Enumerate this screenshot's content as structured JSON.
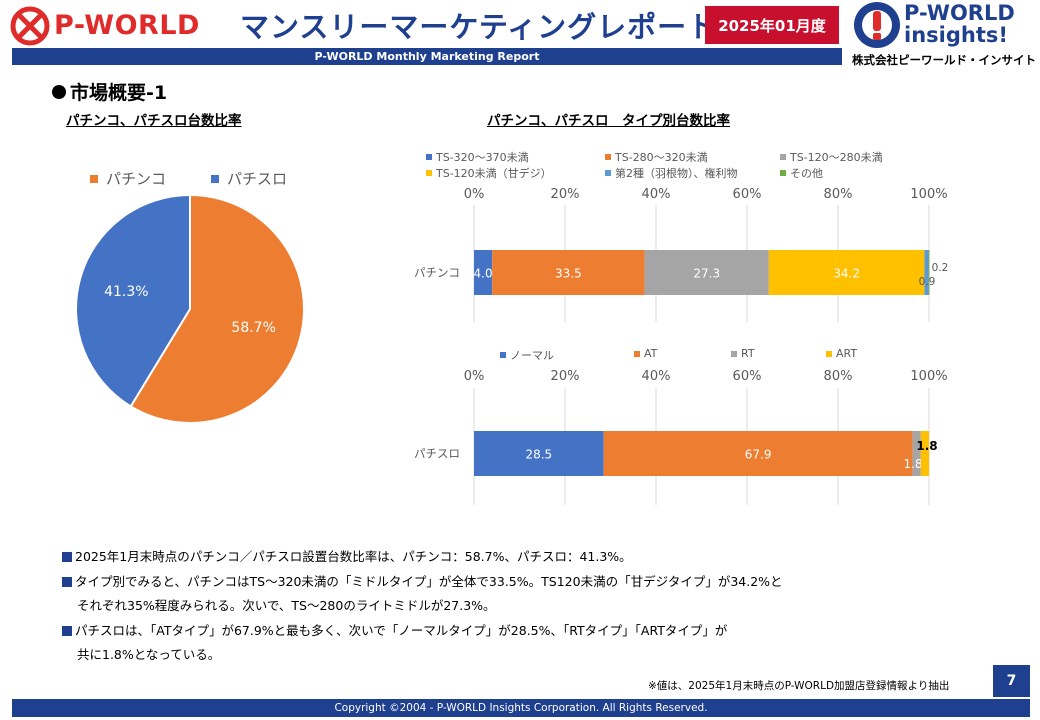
{
  "header": {
    "logo_text": "P-WORLD",
    "title": "マンスリーマーケティングレポート",
    "month_badge": "2025年01月度",
    "subtitle": "P-WORLD Monthly Marketing Report",
    "right_logo_line1": "P-WORLD",
    "right_logo_line2": "insights!",
    "company_name": "株式会社ピーワールド・インサイト"
  },
  "section_title": "市場概要-1",
  "colors": {
    "brand_navy": "#1f3f8f",
    "brand_red": "#c8102e",
    "orange": "#ed7d31",
    "blue": "#4472c4",
    "gray": "#a5a5a5",
    "yellow": "#ffc000",
    "light_blue": "#5b9bd5",
    "green": "#70ad47"
  },
  "chart_data": [
    {
      "type": "pie",
      "title": "パチンコ、パチスロ台数比率",
      "categories": [
        "パチンコ",
        "パチスロ"
      ],
      "values": [
        58.7,
        41.3
      ],
      "labels": [
        "58.7%",
        "41.3%"
      ],
      "colors": [
        "#ed7d31",
        "#4472c4"
      ],
      "legend_position": "top"
    },
    {
      "type": "bar",
      "orientation": "horizontal",
      "stacked": "100%",
      "title": "パチンコ、パチスロ　タイプ別台数比率",
      "categories": [
        "パチンコ"
      ],
      "series": [
        {
          "name": "TS-320～370未満",
          "values": [
            4.0
          ],
          "label": "4.0",
          "color": "#4472c4"
        },
        {
          "name": "TS-280～320未満",
          "values": [
            33.5
          ],
          "label": "33.5",
          "color": "#ed7d31"
        },
        {
          "name": "TS-120～280未満",
          "values": [
            27.3
          ],
          "label": "27.3",
          "color": "#a5a5a5"
        },
        {
          "name": "TS-120未満（甘デジ）",
          "values": [
            34.2
          ],
          "label": "34.2",
          "color": "#ffc000"
        },
        {
          "name": "第2種（羽根物）、権利物",
          "values": [
            0.9
          ],
          "label": "0.9",
          "color": "#5b9bd5"
        },
        {
          "name": "その他",
          "values": [
            0.2
          ],
          "label": "0.2",
          "color": "#70ad47"
        }
      ],
      "x_ticks": [
        "0%",
        "20%",
        "40%",
        "60%",
        "80%",
        "100%"
      ],
      "xlim": [
        0,
        100
      ],
      "grid": true,
      "legend_position": "top"
    },
    {
      "type": "bar",
      "orientation": "horizontal",
      "stacked": "100%",
      "categories": [
        "パチスロ"
      ],
      "series": [
        {
          "name": "ノーマル",
          "values": [
            28.5
          ],
          "label": "28.5",
          "color": "#4472c4"
        },
        {
          "name": "AT",
          "values": [
            67.9
          ],
          "label": "67.9",
          "color": "#ed7d31"
        },
        {
          "name": "RT",
          "values": [
            1.8
          ],
          "label": "1.8",
          "color": "#a5a5a5"
        },
        {
          "name": "ART",
          "values": [
            1.8
          ],
          "label": "1.8",
          "color": "#ffc000"
        }
      ],
      "x_ticks": [
        "0%",
        "20%",
        "40%",
        "60%",
        "80%",
        "100%"
      ],
      "xlim": [
        0,
        100
      ],
      "grid": true,
      "legend_position": "top"
    }
  ],
  "bullets": [
    {
      "text": "2025年1月末時点のパチンコ／パチスロ設置台数比率は、パチンコ：58.7%、パチスロ：41.3%。",
      "cont": ""
    },
    {
      "text": "タイプ別でみると、パチンコはTS～320未満の「ミドルタイプ」が全体で33.5%。TS120未満の「甘デジタイプ」が34.2%と",
      "cont": "それぞれ35%程度みられる。次いで、TS～280のライトミドルが27.3%。"
    },
    {
      "text": "パチスロは、「ATタイプ」が67.9%と最も多く、次いで「ノーマルタイプ」が28.5%、「RTタイプ」「ARTタイプ」が",
      "cont": "共に1.8%となっている。"
    }
  ],
  "footnote": "※値は、2025年1月末時点のP-WORLD加盟店登録情報より抽出",
  "page_number": "7",
  "footer": "Copyright ©2004 - P-WORLD Insights Corporation. All Rights Reserved."
}
